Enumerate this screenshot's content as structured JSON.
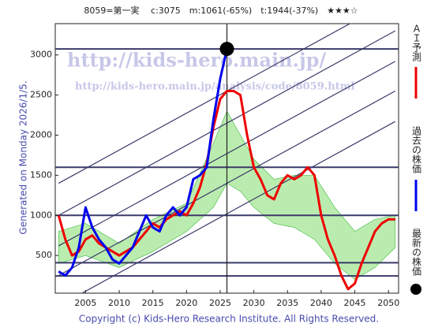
{
  "chart_data": {
    "type": "line",
    "title": "8059=第一実　 c:3075　m:1061(-65%)　t:1944(-37%)　★★★☆",
    "generated": "Generated on Monday 2026/1/5.",
    "copyright": "Copyright (c) Kids-Hero Research Institute. All Rights Reserved.",
    "watermarks": [
      "http://kids-hero.main.jp/",
      "http://kids-hero.main.jp/analysis/code/8059.html"
    ],
    "xlim": [
      2000.5,
      2051.5
    ],
    "ylim": [
      30,
      3390
    ],
    "xticks": [
      2005,
      2010,
      2015,
      2020,
      2025,
      2030,
      2035,
      2040,
      2045,
      2050
    ],
    "yticks": [
      500,
      1000,
      1500,
      2000,
      2500,
      3000
    ],
    "series": [
      {
        "name": "ＡＩ予測",
        "color": "#ee0000",
        "x": [
          2001,
          2002,
          2003,
          2004,
          2005,
          2006,
          2007,
          2008,
          2009,
          2010,
          2011,
          2012,
          2013,
          2014,
          2015,
          2016,
          2017,
          2018,
          2019,
          2020,
          2021,
          2022,
          2023,
          2024,
          2025,
          2026,
          2027,
          2028,
          2029,
          2030,
          2031,
          2032,
          2033,
          2034,
          2035,
          2036,
          2037,
          2038,
          2039,
          2040,
          2041,
          2042,
          2043,
          2044,
          2045,
          2046,
          2047,
          2048,
          2049,
          2050,
          2051
        ],
        "values": [
          1000,
          700,
          500,
          550,
          700,
          750,
          650,
          600,
          550,
          500,
          550,
          600,
          700,
          800,
          900,
          850,
          950,
          1000,
          1050,
          1000,
          1150,
          1350,
          1650,
          2100,
          2450,
          2550,
          2550,
          2500,
          2000,
          1600,
          1450,
          1250,
          1200,
          1400,
          1500,
          1450,
          1500,
          1600,
          1500,
          1000,
          700,
          500,
          250,
          80,
          150,
          400,
          600,
          800,
          900,
          950,
          950
        ]
      },
      {
        "name": "過去の株価",
        "color": "#0000ee",
        "x": [
          2001,
          2002,
          2003,
          2004,
          2005,
          2006,
          2007,
          2008,
          2009,
          2010,
          2011,
          2012,
          2013,
          2014,
          2015,
          2016,
          2017,
          2018,
          2019,
          2020,
          2021,
          2022,
          2023,
          2024,
          2025,
          2026
        ],
        "values": [
          300,
          250,
          350,
          600,
          1100,
          850,
          700,
          600,
          450,
          400,
          500,
          600,
          800,
          1000,
          850,
          800,
          1000,
          1100,
          1000,
          1100,
          1450,
          1500,
          1600,
          2200,
          2700,
          3075
        ]
      }
    ],
    "latest": {
      "name": "最新の株価",
      "x": 2026,
      "value": 3075
    },
    "band": {
      "color": "#8ee07a",
      "x": [
        2001,
        2005,
        2010,
        2015,
        2020,
        2024,
        2026,
        2028,
        2030,
        2033,
        2036,
        2039,
        2042,
        2045,
        2048,
        2051
      ],
      "upper": [
        800,
        900,
        650,
        950,
        1150,
        1900,
        2300,
        2000,
        1700,
        1450,
        1500,
        1500,
        1100,
        800,
        950,
        1000
      ],
      "lower": [
        400,
        500,
        350,
        550,
        800,
        1100,
        1400,
        1300,
        1100,
        900,
        850,
        700,
        400,
        200,
        350,
        600
      ]
    },
    "hlines": [
      3075,
      1600,
      1000,
      410,
      245
    ],
    "trend_lines": [
      {
        "x": [
          2001,
          2051
        ],
        "values": [
          1400,
          3700
        ]
      },
      {
        "x": [
          2001,
          2051
        ],
        "values": [
          1000,
          3300
        ]
      },
      {
        "x": [
          2001,
          2051
        ],
        "values": [
          620,
          2920
        ]
      },
      {
        "x": [
          2001,
          2051
        ],
        "values": [
          250,
          2550
        ]
      },
      {
        "x": [
          2001,
          2051
        ],
        "values": [
          -130,
          2170
        ]
      }
    ],
    "vline": 2026
  }
}
